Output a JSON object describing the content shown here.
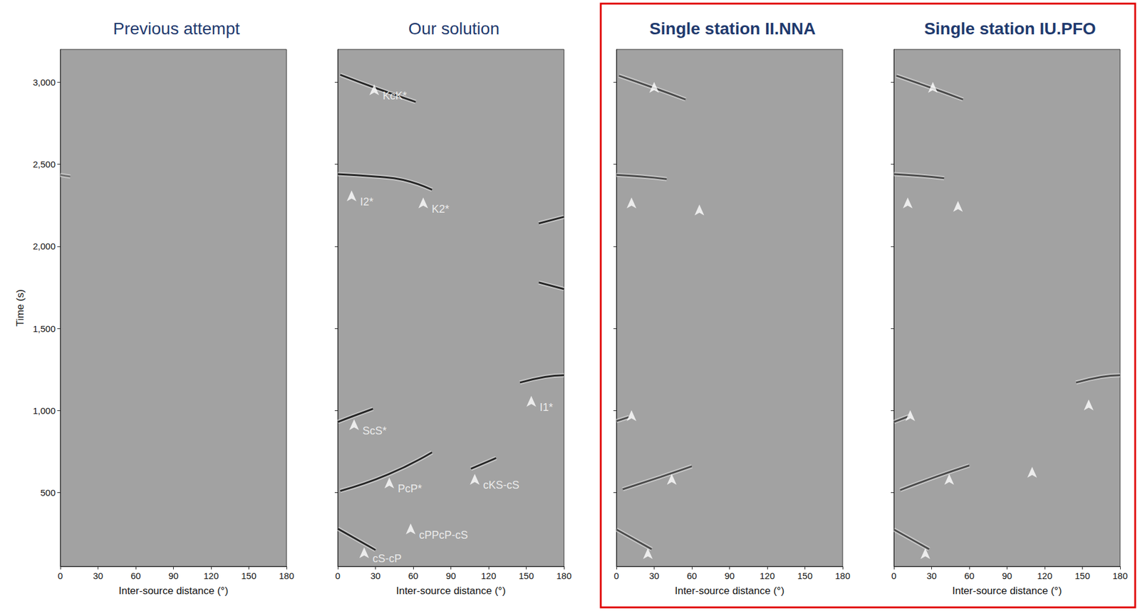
{
  "chart_data": [
    {
      "type": "line",
      "title": "Previous attempt",
      "xlabel": "Inter-source distance (°)",
      "ylabel": "Time (s)",
      "xlim": [
        0,
        180
      ],
      "xticks": [
        0,
        30,
        60,
        90,
        120,
        150,
        180
      ],
      "ylim": [
        50,
        3200
      ],
      "yticks": [
        500,
        1000,
        1500,
        2000,
        2500,
        3000
      ],
      "color": "#6e6e6e",
      "series": [
        {
          "x": [
            0,
            4,
            8
          ],
          "values": [
            2435,
            2430,
            2425
          ]
        }
      ],
      "annotations": []
    },
    {
      "type": "line",
      "title": "Our solution",
      "xlabel": "Inter-source distance (°)",
      "xlim": [
        0,
        180
      ],
      "xticks": [
        0,
        30,
        60,
        90,
        120,
        150,
        180
      ],
      "ylim": [
        50,
        3200
      ],
      "yticks": [
        500,
        1000,
        1500,
        2000,
        2500,
        3000
      ],
      "tick_labels": "x",
      "color": "#262626",
      "series": [
        {
          "x": [
            2,
            30,
            62
          ],
          "values": [
            3045,
            2965,
            2880
          ]
        },
        {
          "x": [
            0,
            30,
            52,
            75
          ],
          "values": [
            2440,
            2425,
            2405,
            2345
          ]
        },
        {
          "x": [
            0,
            12,
            28
          ],
          "values": [
            930,
            965,
            1010
          ]
        },
        {
          "x": [
            2,
            40,
            75
          ],
          "values": [
            510,
            610,
            745
          ]
        },
        {
          "x": [
            106,
            126
          ],
          "values": [
            645,
            710
          ]
        },
        {
          "x": [
            145,
            165,
            180
          ],
          "values": [
            1170,
            1205,
            1215
          ]
        },
        {
          "x": [
            0,
            30
          ],
          "values": [
            280,
            150
          ]
        },
        {
          "x": [
            160,
            180
          ],
          "values": [
            2140,
            2180
          ]
        },
        {
          "x": [
            160,
            180
          ],
          "values": [
            1780,
            1740
          ]
        }
      ],
      "annotations": [
        {
          "text": "KcK*",
          "x": 29,
          "y": 3020
        },
        {
          "text": "I2*",
          "x": 11,
          "y": 2374
        },
        {
          "text": "K2*",
          "x": 68,
          "y": 2331
        },
        {
          "text": "ScS*",
          "x": 13,
          "y": 980
        },
        {
          "text": "I1*",
          "x": 154,
          "y": 1122
        },
        {
          "text": "PcP*",
          "x": 41,
          "y": 625
        },
        {
          "text": "cKS-cS",
          "x": 109,
          "y": 647
        },
        {
          "text": "cPPcP-cS",
          "x": 58,
          "y": 345
        },
        {
          "text": "cS-cP",
          "x": 21,
          "y": 200
        }
      ]
    },
    {
      "type": "line",
      "title": "Single station II.NNA",
      "xlabel": "Inter-source distance (°)",
      "xlim": [
        0,
        180
      ],
      "xticks": [
        0,
        30,
        60,
        90,
        120,
        150,
        180
      ],
      "ylim": [
        50,
        3200
      ],
      "yticks": [
        500,
        1000,
        1500,
        2000,
        2500,
        3000
      ],
      "tick_labels": "x",
      "color": "#4a4a4a",
      "series": [
        {
          "x": [
            2,
            30,
            55
          ],
          "values": [
            3040,
            2965,
            2895
          ]
        },
        {
          "x": [
            0,
            20,
            40
          ],
          "values": [
            2435,
            2425,
            2410
          ]
        },
        {
          "x": [
            0,
            10
          ],
          "values": [
            935,
            960
          ]
        },
        {
          "x": [
            5,
            35,
            60
          ],
          "values": [
            520,
            595,
            660
          ]
        },
        {
          "x": [
            0,
            28
          ],
          "values": [
            275,
            155
          ]
        }
      ],
      "annotations": [
        {
          "x": 30,
          "y": 3035
        },
        {
          "x": 12,
          "y": 2331
        },
        {
          "x": 66,
          "y": 2288
        },
        {
          "x": 12,
          "y": 1035
        },
        {
          "x": 44,
          "y": 647
        },
        {
          "x": 25,
          "y": 194
        }
      ]
    },
    {
      "type": "line",
      "title": "Single station IU.PFO",
      "xlabel": "Inter-source distance (°)",
      "xlim": [
        0,
        180
      ],
      "xticks": [
        0,
        30,
        60,
        90,
        120,
        150,
        180
      ],
      "ylim": [
        50,
        3200
      ],
      "yticks": [
        500,
        1000,
        1500,
        2000,
        2500,
        3000
      ],
      "tick_labels": "x",
      "color": "#4a4a4a",
      "series": [
        {
          "x": [
            2,
            30,
            55
          ],
          "values": [
            3040,
            2965,
            2895
          ]
        },
        {
          "x": [
            0,
            20,
            40
          ],
          "values": [
            2440,
            2430,
            2415
          ]
        },
        {
          "x": [
            0,
            12
          ],
          "values": [
            930,
            965
          ]
        },
        {
          "x": [
            145,
            165,
            180
          ],
          "values": [
            1170,
            1205,
            1215
          ]
        },
        {
          "x": [
            5,
            35,
            60
          ],
          "values": [
            515,
            600,
            665
          ]
        },
        {
          "x": [
            0,
            28
          ],
          "values": [
            275,
            155
          ]
        }
      ],
      "annotations": [
        {
          "x": 31,
          "y": 3035
        },
        {
          "x": 11,
          "y": 2331
        },
        {
          "x": 51,
          "y": 2310
        },
        {
          "x": 13,
          "y": 1035
        },
        {
          "x": 155,
          "y": 1100
        },
        {
          "x": 44,
          "y": 647
        },
        {
          "x": 110,
          "y": 690
        },
        {
          "x": 25,
          "y": 194
        }
      ]
    }
  ]
}
